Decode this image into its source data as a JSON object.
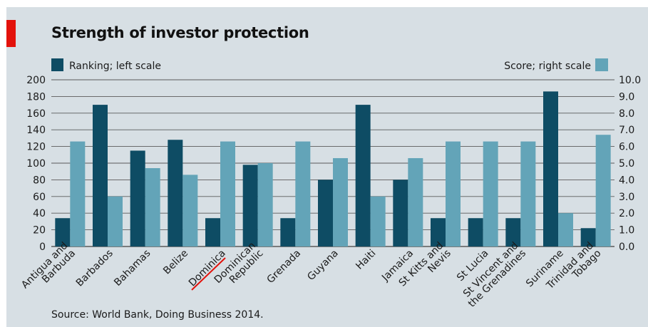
{
  "title": "Strength of investor protection",
  "source": "Source: World Bank, Doing Business 2014.",
  "colors": {
    "panel_bg": "#d7dfe4",
    "ranking": "#0e4c64",
    "score": "#63a4b8",
    "accent_tag": "#e3120b",
    "gridline": "#5a5a5a",
    "annotation_underline": "#e3120b"
  },
  "chart_data": {
    "type": "bar",
    "categories": [
      "Antigua and Barbuda",
      "Barbados",
      "Bahamas",
      "Belize",
      "Dominica",
      "Dominican Republic",
      "Grenada",
      "Guyana",
      "Haiti",
      "Jamaica",
      "St Kitts and Nevis",
      "St Lucia",
      "St Vincent and the Grenadines",
      "Suriname",
      "Trinidad and Tobago"
    ],
    "category_lines": [
      [
        "Antigua and",
        "Barbuda"
      ],
      [
        "Barbados"
      ],
      [
        "Bahamas"
      ],
      [
        "Belize"
      ],
      [
        "Dominica"
      ],
      [
        "Dominican",
        "Republic"
      ],
      [
        "Grenada"
      ],
      [
        "Guyana"
      ],
      [
        "Haiti"
      ],
      [
        "Jamaica"
      ],
      [
        "St Kitts and",
        "Nevis"
      ],
      [
        "St Lucia"
      ],
      [
        "St Vincent and",
        "the Grenadines"
      ],
      [
        "Suriname"
      ],
      [
        "Trinidad and",
        "Tobago"
      ]
    ],
    "series": [
      {
        "name": "Ranking; left scale",
        "axis": "left",
        "values": [
          34,
          170,
          115,
          128,
          34,
          98,
          34,
          80,
          170,
          80,
          34,
          34,
          34,
          186,
          22
        ]
      },
      {
        "name": "Score; right scale",
        "axis": "right",
        "values": [
          6.3,
          3.0,
          4.7,
          4.3,
          6.3,
          5.0,
          6.3,
          5.3,
          3.0,
          5.3,
          6.3,
          6.3,
          6.3,
          2.0,
          6.7
        ]
      }
    ],
    "left_axis": {
      "ylim": [
        0,
        200
      ],
      "ticks": [
        "0",
        "20",
        "40",
        "60",
        "80",
        "100",
        "120",
        "140",
        "160",
        "180",
        "200"
      ]
    },
    "right_axis": {
      "ylim": [
        0,
        10
      ],
      "ticks": [
        "0.0",
        "1.0",
        "2.0",
        "3.0",
        "4.0",
        "5.0",
        "6.0",
        "7.0",
        "8.0",
        "9.0",
        "10.0"
      ]
    },
    "legend": {
      "left": "Ranking; left scale",
      "right": "Score; right scale",
      "placement": "top"
    },
    "grid": true,
    "highlighted_category": "Dominica"
  }
}
